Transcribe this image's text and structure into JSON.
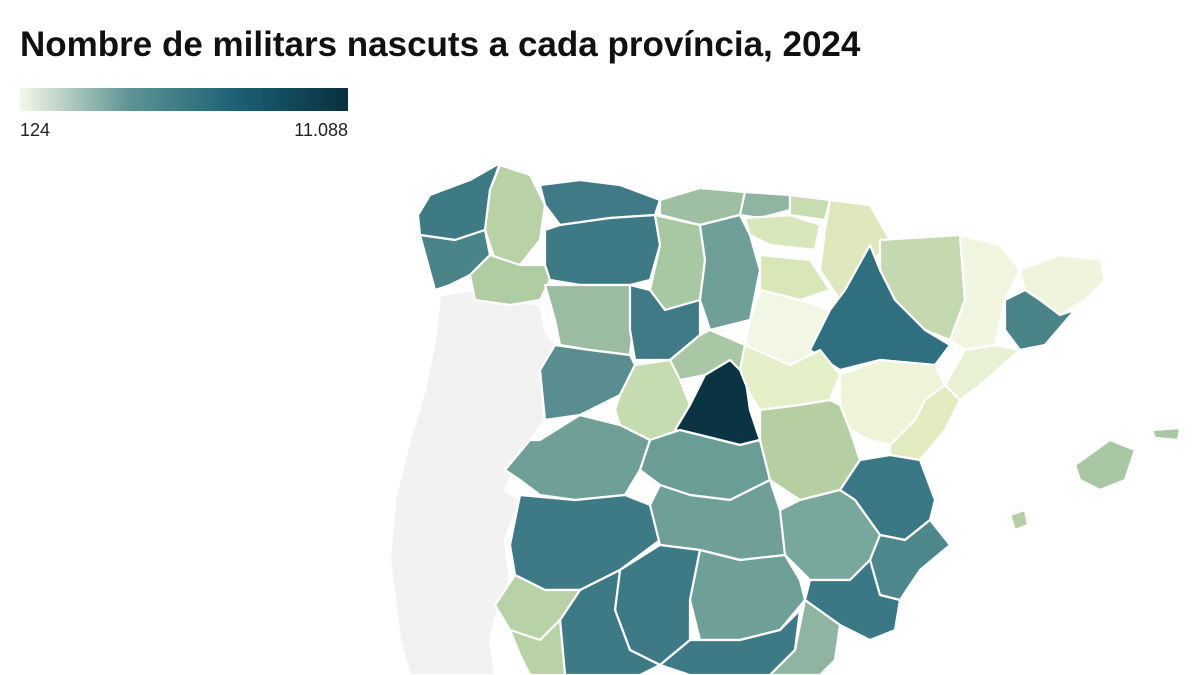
{
  "title": "Nombre de militars nascuts a cada província, 2024",
  "legend": {
    "min": 124,
    "max": {
      "value": 11088,
      "label": "11.088"
    },
    "colors": [
      "#f4f8e6",
      "#5f9494",
      "#1c5f74",
      "#08303f"
    ]
  }
}
